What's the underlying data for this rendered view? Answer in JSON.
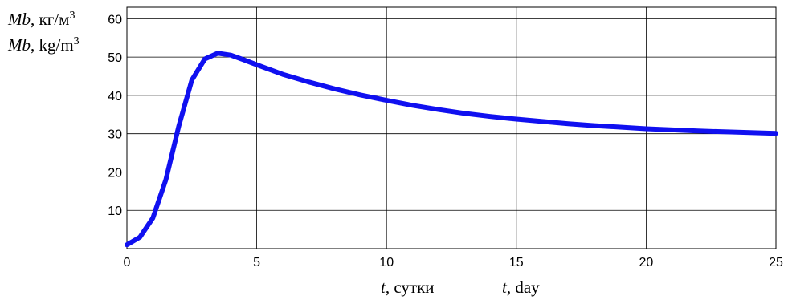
{
  "chart_data": {
    "type": "line",
    "ylabel_ru": {
      "var": "Mb",
      "unit": ", кг/м",
      "sup": "3"
    },
    "ylabel_en": {
      "var": "Mb",
      "unit": ", kg/m",
      "sup": "3"
    },
    "xlabel_ru": {
      "var": "t",
      "unit": ", сутки"
    },
    "xlabel_en": {
      "var": "t",
      "unit": ", day"
    },
    "xlim": [
      0,
      25
    ],
    "ylim": [
      0,
      63
    ],
    "xticks": [
      0,
      5,
      10,
      15,
      20,
      25
    ],
    "yticks": [
      10,
      20,
      30,
      40,
      50,
      60
    ],
    "grid": true,
    "series_color": "#1010f0",
    "series": [
      {
        "x": [
          0,
          0.5,
          1,
          1.5,
          2,
          2.5,
          3,
          3.5,
          4,
          4.5,
          5,
          6,
          7,
          8,
          9,
          10,
          11,
          12,
          13,
          14,
          15,
          16,
          17,
          18,
          19,
          20,
          21,
          22,
          23,
          24,
          25
        ],
        "y": [
          1,
          3,
          8,
          18,
          32,
          44,
          49.5,
          51,
          50.5,
          49.3,
          48,
          45.5,
          43.5,
          41.7,
          40.1,
          38.7,
          37.4,
          36.3,
          35.3,
          34.5,
          33.8,
          33.2,
          32.6,
          32.1,
          31.7,
          31.3,
          31.0,
          30.7,
          30.5,
          30.3,
          30.1
        ]
      }
    ]
  }
}
